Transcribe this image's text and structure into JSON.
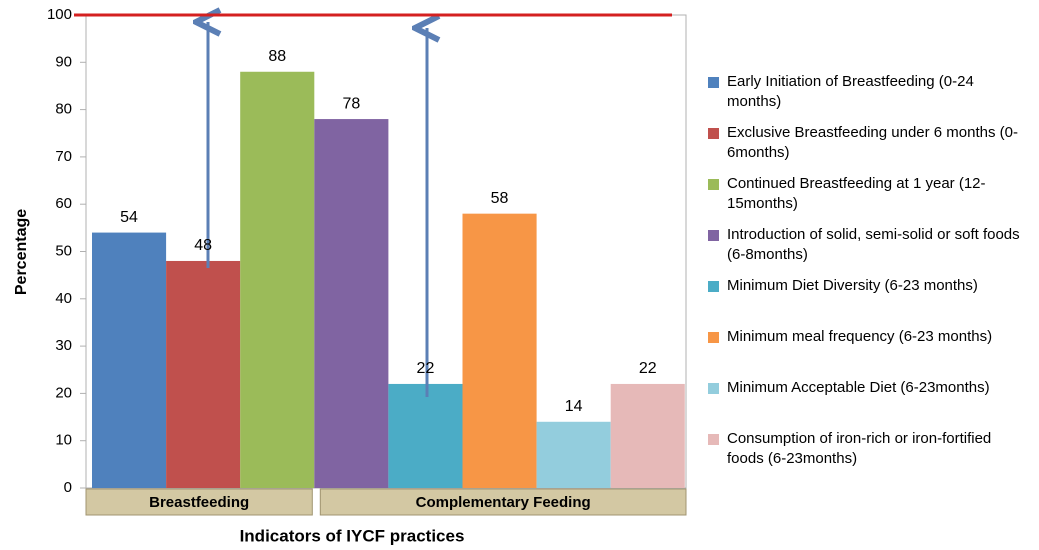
{
  "chart_data": {
    "type": "bar",
    "x_label": "Indicators of IYCF practices",
    "y_label": "Percentage",
    "ylim": [
      0,
      100
    ],
    "yticks": [
      0,
      10,
      20,
      30,
      40,
      50,
      60,
      70,
      80,
      90,
      100
    ],
    "grid": false,
    "legend": "right",
    "reference_line": {
      "value": 100,
      "color": "#d42020"
    },
    "groups": [
      {
        "name": "Breastfeeding",
        "items": [
          {
            "name": "Early Initiation of Breastfeeding (0-24 months)",
            "color": "#4f81bd",
            "value": 54
          },
          {
            "name": "Exclusive Breastfeeding under 6 months (0-6months)",
            "color": "#c0504d",
            "value": 48
          },
          {
            "name": "Continued Breastfeeding at 1 year (12-15months)",
            "color": "#9bbb59",
            "value": 88
          }
        ]
      },
      {
        "name": "Complementary Feeding",
        "items": [
          {
            "name": "Introduction of solid, semi-solid or soft foods (6-8months)",
            "color": "#8064a2",
            "value": 78
          },
          {
            "name": "Minimum Diet Diversity (6-23 months)",
            "color": "#4bacc6",
            "value": 22
          },
          {
            "name": "Minimum meal frequency (6-23 months)",
            "color": "#f79646",
            "value": 58
          },
          {
            "name": "Minimum Acceptable Diet (6-23months)",
            "color": "#93cddd",
            "value": 14
          },
          {
            "name": "Consumption of iron-rich or iron-fortified foods (6-23months)",
            "color": "#e6b9b8",
            "value": 22
          }
        ]
      }
    ]
  }
}
